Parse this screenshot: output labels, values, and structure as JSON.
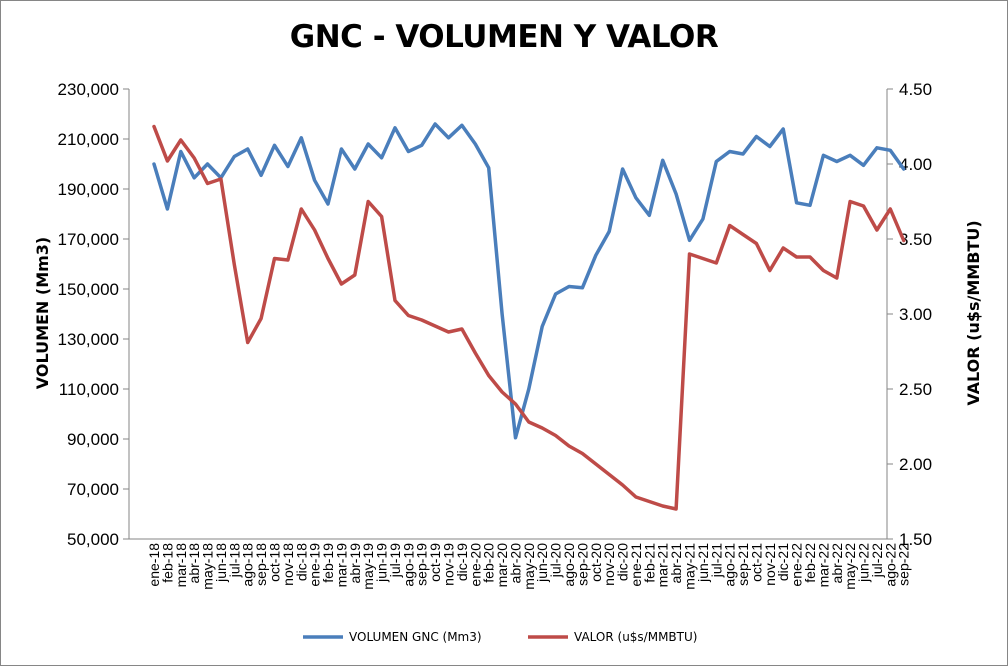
{
  "chart_data": {
    "type": "line",
    "title": "GNC - VOLUMEN Y VALOR",
    "ylabel_left": "VOLUMEN (Mm3)",
    "ylabel_right": "VALOR (u$s/MMBTU)",
    "y_left_lim": [
      50000,
      230000
    ],
    "y_left_ticks": [
      "50,000",
      "70,000",
      "90,000",
      "110,000",
      "130,000",
      "150,000",
      "170,000",
      "190,000",
      "210,000",
      "230,000"
    ],
    "y_right_lim": [
      1.5,
      4.5
    ],
    "y_right_ticks": [
      "1.50",
      "2.00",
      "2.50",
      "3.00",
      "3.50",
      "4.00",
      "4.50"
    ],
    "grid": false,
    "legend_position": "bottom",
    "categories": [
      "ene-18",
      "feb-18",
      "mar-18",
      "abr-18",
      "may-18",
      "jun-18",
      "jul-18",
      "ago-18",
      "sep-18",
      "oct-18",
      "nov-18",
      "dic-18",
      "ene-19",
      "feb-19",
      "mar-19",
      "abr-19",
      "may-19",
      "jun-19",
      "jul-19",
      "ago-19",
      "sep-19",
      "oct-19",
      "nov-19",
      "dic-19",
      "ene-20",
      "feb-20",
      "mar-20",
      "abr-20",
      "may-20",
      "jun-20",
      "jul-20",
      "ago-20",
      "sep-20",
      "oct-20",
      "nov-20",
      "dic-20",
      "ene-21",
      "feb-21",
      "mar-21",
      "abr-21",
      "may-21",
      "jun-21",
      "jul-21",
      "ago-21",
      "sep-21",
      "oct-21",
      "nov-21",
      "dic-21",
      "ene-22",
      "feb-22",
      "mar-22",
      "abr-22",
      "may-22",
      "jun-22",
      "jul-22",
      "ago-22",
      "sep-22"
    ],
    "series": [
      {
        "name": "VOLUMEN GNC (Mm3)",
        "axis": "left",
        "color": "#4a7ebb",
        "values": [
          200000,
          182000,
          205000,
          194500,
          200000,
          194500,
          203000,
          206000,
          195500,
          207500,
          199000,
          210500,
          193500,
          184000,
          206000,
          198000,
          208000,
          202500,
          214500,
          205000,
          207500,
          216000,
          210500,
          215500,
          208000,
          198500,
          140000,
          90500,
          110000,
          135000,
          148000,
          151000,
          150500,
          163500,
          173000,
          198000,
          186500,
          179500,
          201500,
          188000,
          169500,
          178000,
          201000,
          205000,
          204000,
          211000,
          207000,
          214000,
          184500,
          183500,
          203500,
          201000,
          203500,
          199500,
          206500,
          205500,
          198000
        ]
      },
      {
        "name": "VALOR (u$s/MMBTU)",
        "axis": "right",
        "color": "#be4b48",
        "values": [
          4.25,
          4.02,
          4.16,
          4.04,
          3.87,
          3.9,
          3.33,
          2.81,
          2.97,
          3.37,
          3.36,
          3.7,
          3.56,
          3.37,
          3.2,
          3.26,
          3.75,
          3.65,
          3.09,
          2.99,
          2.96,
          2.92,
          2.88,
          2.9,
          2.74,
          2.59,
          2.48,
          2.4,
          2.28,
          2.24,
          2.19,
          2.12,
          2.07,
          2.0,
          1.93,
          1.86,
          1.78,
          1.75,
          1.72,
          1.7,
          3.4,
          3.37,
          3.34,
          3.59,
          3.53,
          3.47,
          3.29,
          3.44,
          3.38,
          3.38,
          3.29,
          3.24,
          3.75,
          3.72,
          3.56,
          3.7,
          3.49
        ]
      }
    ]
  }
}
